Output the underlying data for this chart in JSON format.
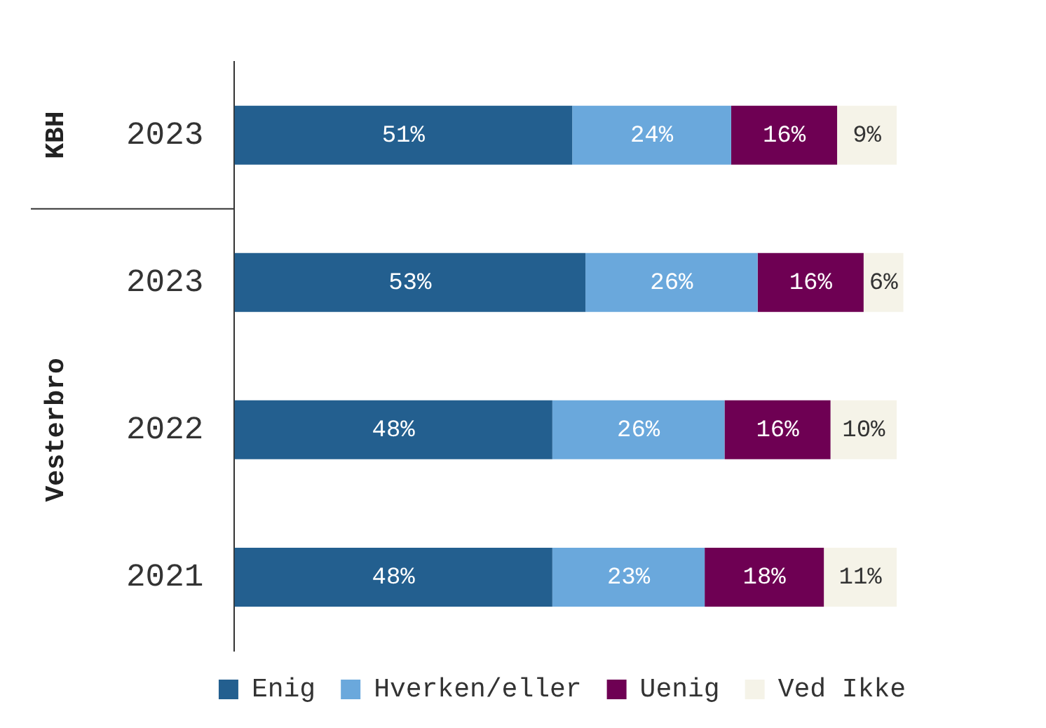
{
  "chart_data": {
    "type": "bar",
    "orientation": "horizontal",
    "stacked": true,
    "categories": [
      "2023",
      "2023",
      "2022",
      "2021"
    ],
    "series": [
      {
        "name": "Enig",
        "color": "#235f8f",
        "values": [
          51,
          53,
          48,
          48
        ],
        "value_labels": [
          "51%",
          "53%",
          "48%",
          "48%"
        ]
      },
      {
        "name": "Hverken/eller",
        "color": "#6aa8dc",
        "values": [
          24,
          26,
          26,
          23
        ],
        "value_labels": [
          "24%",
          "26%",
          "26%",
          "23%"
        ]
      },
      {
        "name": "Uenig",
        "color": "#6e0053",
        "values": [
          16,
          16,
          16,
          18
        ],
        "value_labels": [
          "16%",
          "16%",
          "16%",
          "18%"
        ]
      },
      {
        "name": "Ved Ikke",
        "color": "#f5f3e8",
        "values": [
          9,
          6,
          10,
          11
        ],
        "value_labels": [
          "9%",
          "6%",
          "10%",
          "11%"
        ]
      }
    ],
    "annotations": [
      "KBH",
      "Vesterbro"
    ],
    "legend": "bottom"
  }
}
